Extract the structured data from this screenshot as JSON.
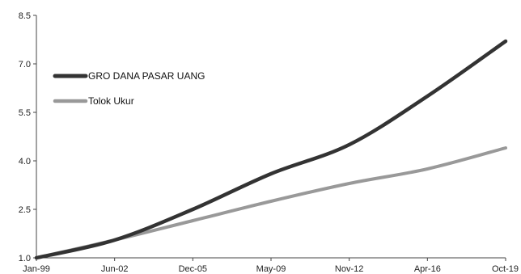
{
  "chart_data": {
    "type": "line",
    "title": "",
    "xlabel": "",
    "ylabel": "",
    "x_tick_labels": [
      "Jan-99",
      "Jun-02",
      "Dec-05",
      "May-09",
      "Nov-12",
      "Apr-16",
      "Oct-19"
    ],
    "y_tick_labels": [
      "1.0",
      "2.5",
      "4.0",
      "5.5",
      "7.0",
      "8.5"
    ],
    "ylim": [
      1.0,
      8.5
    ],
    "legend_position": "top-left",
    "grid": false,
    "series": [
      {
        "name": "GRO DANA PASAR UANG",
        "color": "#333333",
        "x": [
          "Jan-99",
          "Jun-02",
          "Dec-05",
          "May-09",
          "Nov-12",
          "Apr-16",
          "Oct-19"
        ],
        "values": [
          1.0,
          1.55,
          2.5,
          3.6,
          4.5,
          6.0,
          7.7
        ]
      },
      {
        "name": "Tolok Ukur",
        "color": "#999999",
        "x": [
          "Jan-99",
          "Jun-02",
          "Dec-05",
          "May-09",
          "Nov-12",
          "Apr-16",
          "Oct-19"
        ],
        "values": [
          1.0,
          1.55,
          2.15,
          2.75,
          3.3,
          3.75,
          4.4
        ]
      }
    ]
  }
}
